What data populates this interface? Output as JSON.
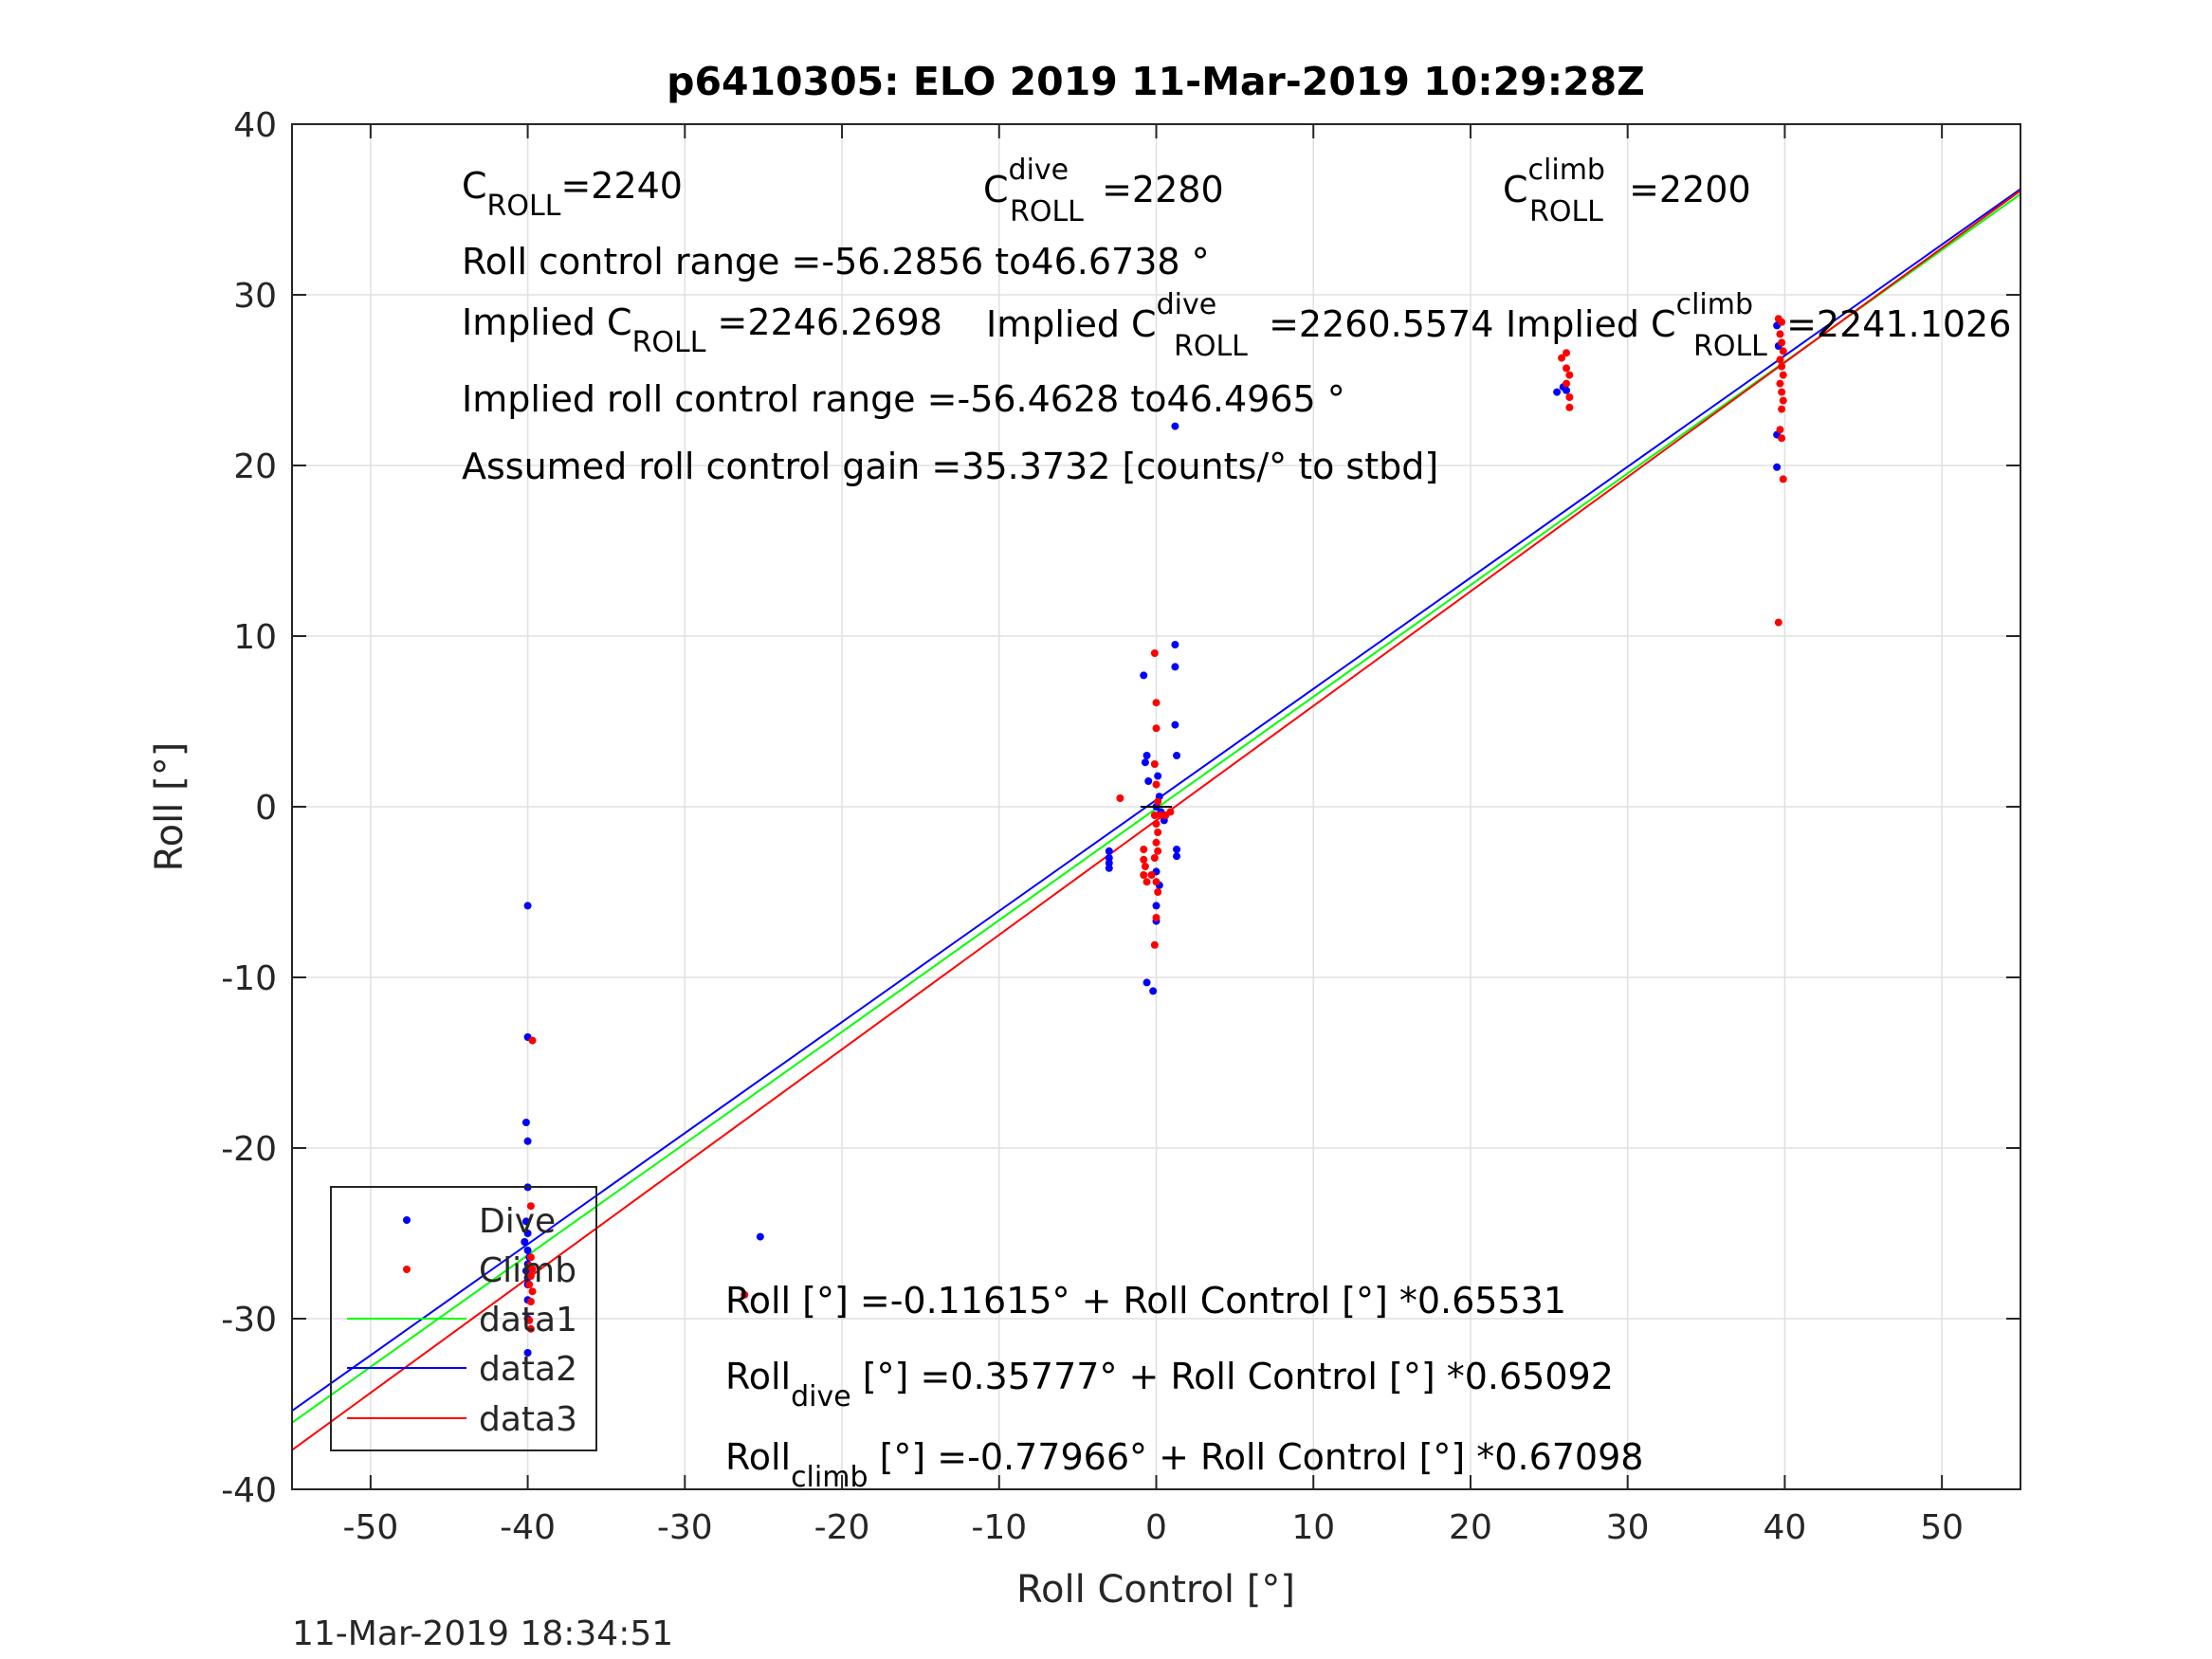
{
  "chart_data": {
    "type": "scatter",
    "title": "p6410305: ELO 2019 11-Mar-2019 10:29:28Z",
    "xlabel": "Roll Control [°]",
    "ylabel": "Roll [°]",
    "xlim": [
      -55,
      55
    ],
    "ylim": [
      -40,
      40
    ],
    "xticks": [
      -50,
      -40,
      -30,
      -20,
      -10,
      0,
      10,
      20,
      30,
      40,
      50
    ],
    "yticks": [
      -40,
      -30,
      -20,
      -10,
      0,
      10,
      20,
      30,
      40
    ],
    "grid": true,
    "legend_position": "bottom-left",
    "colors": {
      "dive": "#0000ff",
      "climb": "#ff0000",
      "data1": "#00ff00",
      "data2": "#0000ff",
      "data3": "#ff0000"
    },
    "series": [
      {
        "name": "Dive",
        "kind": "points",
        "color": "#0000ff",
        "points": [
          [
            -40,
            -5.8
          ],
          [
            -40,
            -13.5
          ],
          [
            -40.1,
            -18.5
          ],
          [
            -40,
            -19.6
          ],
          [
            -40,
            -22.3
          ],
          [
            -40.1,
            -24.3
          ],
          [
            -40,
            -25
          ],
          [
            -40.2,
            -25.5
          ],
          [
            -40,
            -26
          ],
          [
            -39.9,
            -26.4
          ],
          [
            -40,
            -26.8
          ],
          [
            -40.1,
            -27.2
          ],
          [
            -40,
            -27.6
          ],
          [
            -40,
            -28
          ],
          [
            -40,
            -28.9
          ],
          [
            -40,
            -30
          ],
          [
            -40,
            -32
          ],
          [
            -25.2,
            -25.2
          ],
          [
            -3,
            -2.6
          ],
          [
            -3,
            -3
          ],
          [
            -3,
            -3.3
          ],
          [
            -3,
            -3.6
          ],
          [
            -0.8,
            7.7
          ],
          [
            -0.6,
            3
          ],
          [
            -0.7,
            2.6
          ],
          [
            -0.5,
            1.5
          ],
          [
            -0.6,
            -10.3
          ],
          [
            -0.2,
            -10.8
          ],
          [
            0,
            -6.7
          ],
          [
            0,
            -5.8
          ],
          [
            0.2,
            -4.6
          ],
          [
            0,
            -3.8
          ],
          [
            0.1,
            1.8
          ],
          [
            0.2,
            0.6
          ],
          [
            0,
            0
          ],
          [
            0.3,
            -0.3
          ],
          [
            0.5,
            -0.8
          ],
          [
            1.2,
            9.5
          ],
          [
            1.2,
            8.2
          ],
          [
            1.2,
            4.8
          ],
          [
            1.3,
            3
          ],
          [
            1.3,
            -2.5
          ],
          [
            1.3,
            -2.9
          ],
          [
            1.2,
            22.3
          ],
          [
            25.5,
            24.3
          ],
          [
            25.9,
            24.6
          ],
          [
            26.1,
            24.4
          ],
          [
            39.5,
            28.2
          ],
          [
            39.6,
            27
          ],
          [
            39.5,
            21.8
          ],
          [
            39.5,
            19.9
          ]
        ]
      },
      {
        "name": "Climb",
        "kind": "points",
        "color": "#ff0000",
        "points": [
          [
            -39.7,
            -13.7
          ],
          [
            -39.8,
            -23.4
          ],
          [
            -39.8,
            -26.4
          ],
          [
            -39.9,
            -26.9
          ],
          [
            -39.7,
            -27.1
          ],
          [
            -39.8,
            -27.5
          ],
          [
            -39.9,
            -28
          ],
          [
            -39.7,
            -28.4
          ],
          [
            -39.8,
            -29
          ],
          [
            -39.9,
            -30.1
          ],
          [
            -39.8,
            -30.6
          ],
          [
            -26.2,
            -28.6
          ],
          [
            -2.3,
            0.5
          ],
          [
            -0.8,
            -2.5
          ],
          [
            -0.8,
            -3.1
          ],
          [
            -0.7,
            -3.5
          ],
          [
            -0.8,
            -4
          ],
          [
            -0.6,
            -4.4
          ],
          [
            -0.3,
            -4
          ],
          [
            -0.1,
            9
          ],
          [
            0,
            6.1
          ],
          [
            0,
            4.6
          ],
          [
            -0.1,
            2.5
          ],
          [
            0,
            1.3
          ],
          [
            0.1,
            0.3
          ],
          [
            -0.1,
            -0.5
          ],
          [
            0,
            -1
          ],
          [
            0.1,
            -1.5
          ],
          [
            0,
            -2.1
          ],
          [
            0.1,
            -2.6
          ],
          [
            -0.1,
            -3
          ],
          [
            0,
            -4.4
          ],
          [
            0.1,
            -5
          ],
          [
            0,
            -6.5
          ],
          [
            -0.1,
            -8.1
          ],
          [
            0.3,
            -0.5
          ],
          [
            0.6,
            -0.5
          ],
          [
            0.9,
            -0.3
          ],
          [
            25.8,
            26.3
          ],
          [
            26.1,
            26.6
          ],
          [
            26.1,
            25.7
          ],
          [
            26.3,
            25.3
          ],
          [
            26.1,
            24.8
          ],
          [
            26.3,
            24
          ],
          [
            26.3,
            23.4
          ],
          [
            39.6,
            28.6
          ],
          [
            39.8,
            28.4
          ],
          [
            39.7,
            27.7
          ],
          [
            39.8,
            27.2
          ],
          [
            39.9,
            26.7
          ],
          [
            39.7,
            26.2
          ],
          [
            39.8,
            25.8
          ],
          [
            39.9,
            25.3
          ],
          [
            39.7,
            24.8
          ],
          [
            39.8,
            24.3
          ],
          [
            39.9,
            23.8
          ],
          [
            39.8,
            23.3
          ],
          [
            39.7,
            22.1
          ],
          [
            39.8,
            21.6
          ],
          [
            39.9,
            19.2
          ],
          [
            39.6,
            10.8
          ]
        ]
      },
      {
        "name": "data1",
        "kind": "line",
        "color": "#00ff00",
        "x": [
          -55,
          55
        ],
        "y": [
          -36.1,
          35.9
        ]
      },
      {
        "name": "data2",
        "kind": "line",
        "color": "#0000ff",
        "x": [
          -55,
          55
        ],
        "y": [
          -35.4,
          36.2
        ]
      },
      {
        "name": "data3",
        "kind": "line",
        "color": "#ff0000",
        "x": [
          -55,
          55
        ],
        "y": [
          -37.7,
          36.1
        ]
      }
    ],
    "legend": [
      "Dive",
      "Climb",
      "data1",
      "data2",
      "data3"
    ],
    "annotations": {
      "croll": {
        "main": "C",
        "sub": "ROLL",
        "rest": "=2240"
      },
      "croll_dive": {
        "main": "C",
        "sup": "dive",
        "sub": "ROLL",
        "rest": " =2280"
      },
      "croll_climb": {
        "main": "C",
        "sup": "climb",
        "sub": "ROLL",
        "rest": " =2200"
      },
      "roll_range": "Roll control range =-56.2856 to46.6738 °",
      "implied_croll": {
        "main": "Implied C",
        "sub": "ROLL",
        "rest": " =2246.2698"
      },
      "implied_croll_dive": {
        "main": "Implied C",
        "sup": "dive",
        "sub": "ROLL",
        "rest": " =2260.5574"
      },
      "implied_croll_climb": {
        "main": "Implied C",
        "sup": "climb",
        "sub": "ROLL",
        "rest": " =2241.1026"
      },
      "implied_range": "Implied roll control range =-56.4628 to46.4965 °",
      "gain": "Assumed roll control gain =35.3732 [counts/° to stbd]",
      "fit_all": "Roll [°] =-0.11615° + Roll Control [°] *0.65531",
      "fit_dive": {
        "main": "Roll",
        "sub": "dive",
        "rest": " [°] =0.35777° + Roll Control [°] *0.65092"
      },
      "fit_climb": {
        "main": "Roll",
        "sub": "climb",
        "rest": " [°] =-0.77966° + Roll Control [°] *0.67098"
      }
    },
    "timestamp": "11-Mar-2019 18:34:51"
  }
}
